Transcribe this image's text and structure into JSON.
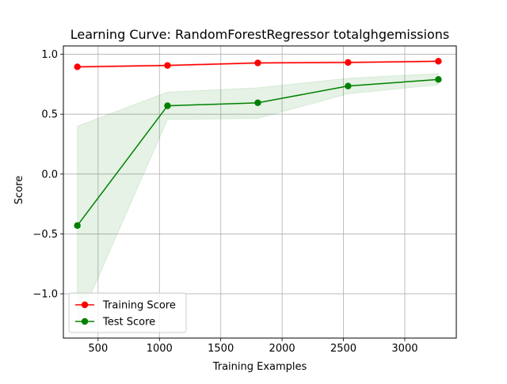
{
  "chart_data": {
    "type": "line",
    "title": "Learning Curve: RandomForestRegressor totalghgemissions",
    "xlabel": "Training Examples",
    "ylabel": "Score",
    "xlim": [
      217,
      3420
    ],
    "ylim": [
      -1.37,
      1.07
    ],
    "xticks": [
      500,
      1000,
      1500,
      2000,
      2500,
      3000
    ],
    "xtick_labels": [
      "500",
      "1000",
      "1500",
      "2000",
      "2500",
      "3000"
    ],
    "yticks": [
      1.0,
      0.5,
      0.0,
      -0.5,
      -1.0
    ],
    "ytick_labels": [
      "1.0",
      "0.5",
      "0.0",
      "−0.5",
      "−1.0"
    ],
    "grid": true,
    "legend_position": "lower-left",
    "x": [
      331,
      1066,
      1802,
      2538,
      3274
    ],
    "series": [
      {
        "name": "Training Score",
        "color": "#ff0000",
        "fill_color": "#ff0000",
        "values": [
          0.895,
          0.907,
          0.928,
          0.932,
          0.942
        ],
        "lower": [
          0.887,
          0.9,
          0.921,
          0.925,
          0.935
        ],
        "upper": [
          0.903,
          0.914,
          0.935,
          0.939,
          0.949
        ]
      },
      {
        "name": "Test Score",
        "color": "#008000",
        "fill_color": "#008000",
        "values": [
          -0.43,
          0.57,
          0.595,
          0.735,
          0.79
        ],
        "lower": [
          -1.26,
          0.455,
          0.465,
          0.67,
          0.745
        ],
        "upper": [
          0.4,
          0.685,
          0.72,
          0.8,
          0.84
        ]
      }
    ]
  }
}
